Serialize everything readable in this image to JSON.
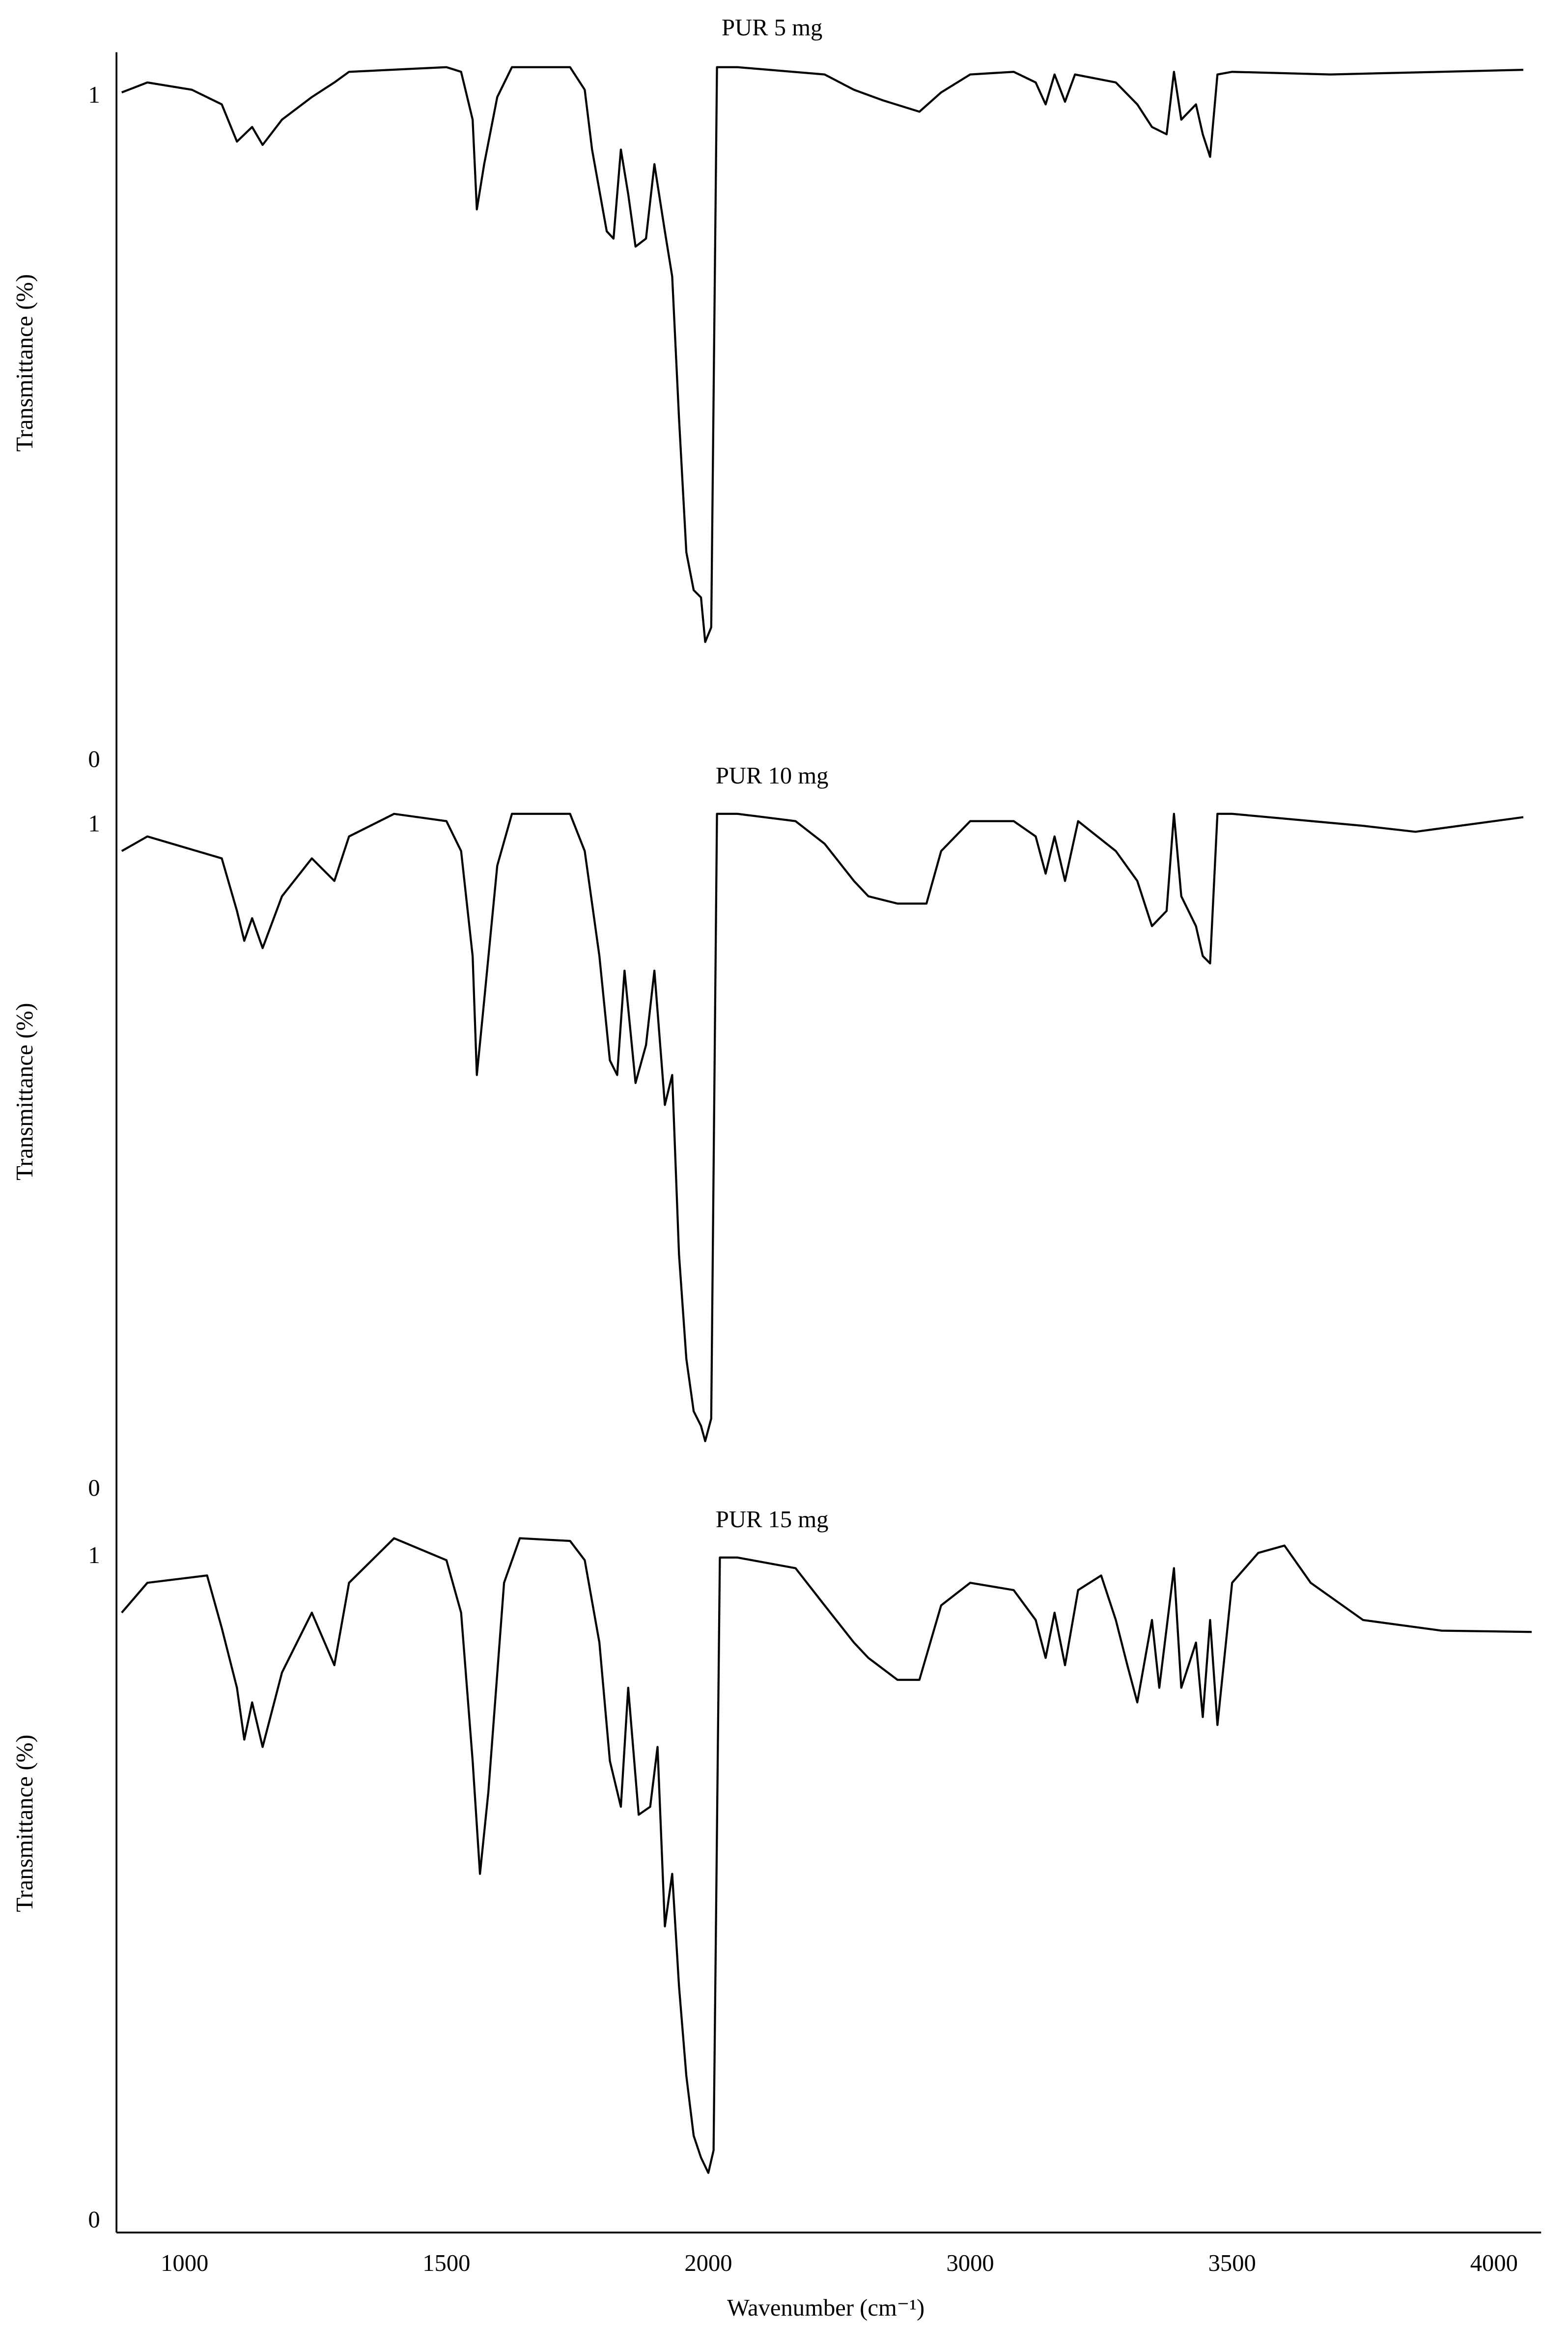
{
  "chart_data": [
    {
      "type": "line",
      "title": "PUR 5 mg",
      "ylabel": "Transmittance (%)",
      "color": "#000000",
      "ylim": [
        0,
        1.06
      ],
      "yticks": [
        0,
        1
      ],
      "x": [
        880,
        929,
        1014,
        1071,
        1100,
        1129,
        1149,
        1186,
        1243,
        1286,
        1314,
        1500,
        1528,
        1550,
        1558,
        1572,
        1597,
        1625,
        1736,
        1764,
        1778,
        1806,
        1819,
        1833,
        1847,
        1861,
        1881,
        1897,
        1917,
        1931,
        1944,
        1958,
        1972,
        1986,
        1994,
        2011,
        2033,
        2111,
        2444,
        2556,
        2667,
        2806,
        2889,
        3000,
        3083,
        3125,
        3144,
        3161,
        3181,
        3200,
        3278,
        3319,
        3347,
        3375,
        3389,
        3403,
        3431,
        3444,
        3458,
        3472,
        3500,
        3688,
        4056
      ],
      "values": [
        1.007,
        1.022,
        1.011,
        0.989,
        0.933,
        0.955,
        0.928,
        0.966,
        1.0,
        1.022,
        1.038,
        1.045,
        1.038,
        0.966,
        0.831,
        0.899,
        1.0,
        1.045,
        1.045,
        1.011,
        0.921,
        0.798,
        0.787,
        0.921,
        0.854,
        0.775,
        0.787,
        0.899,
        0.798,
        0.73,
        0.517,
        0.315,
        0.258,
        0.247,
        0.18,
        0.202,
        1.045,
        1.045,
        1.034,
        1.011,
        0.995,
        0.978,
        1.007,
        1.034,
        1.038,
        1.022,
        0.989,
        1.034,
        0.993,
        1.034,
        1.022,
        0.989,
        0.955,
        0.944,
        1.038,
        0.966,
        0.989,
        0.944,
        0.91,
        1.034,
        1.038,
        1.034,
        1.041
      ]
    },
    {
      "type": "line",
      "title": "PUR 10 mg",
      "ylabel": "Transmittance (%)",
      "color": "#000000",
      "ylim": [
        0,
        1.06
      ],
      "yticks": [
        0,
        1
      ],
      "x": [
        880,
        929,
        1071,
        1100,
        1114,
        1129,
        1149,
        1186,
        1243,
        1286,
        1314,
        1400,
        1500,
        1528,
        1550,
        1558,
        1572,
        1597,
        1625,
        1736,
        1764,
        1792,
        1812,
        1826,
        1840,
        1861,
        1881,
        1897,
        1917,
        1931,
        1944,
        1958,
        1972,
        1986,
        1994,
        2011,
        2033,
        2111,
        2333,
        2444,
        2556,
        2611,
        2722,
        2833,
        2889,
        3000,
        3083,
        3125,
        3144,
        3161,
        3181,
        3206,
        3278,
        3319,
        3347,
        3375,
        3389,
        3403,
        3431,
        3444,
        3458,
        3472,
        3500,
        3750,
        3850,
        4056
      ],
      "values": [
        0.962,
        0.984,
        0.951,
        0.872,
        0.827,
        0.861,
        0.816,
        0.894,
        0.951,
        0.917,
        0.984,
        1.018,
        1.007,
        0.962,
        0.804,
        0.625,
        0.737,
        0.94,
        1.018,
        1.018,
        0.962,
        0.804,
        0.647,
        0.625,
        0.782,
        0.613,
        0.67,
        0.782,
        0.58,
        0.625,
        0.355,
        0.198,
        0.119,
        0.097,
        0.074,
        0.108,
        1.018,
        1.018,
        1.007,
        0.973,
        0.917,
        0.894,
        0.883,
        0.883,
        0.962,
        1.007,
        1.007,
        0.984,
        0.928,
        0.984,
        0.917,
        1.007,
        0.962,
        0.917,
        0.849,
        0.872,
        1.018,
        0.894,
        0.849,
        0.804,
        0.793,
        1.018,
        1.018,
        1.0,
        0.991,
        1.013
      ]
    },
    {
      "type": "line",
      "title": "PUR 15 mg",
      "ylabel": "Transmittance (%)",
      "xlabel": "Wavenumber (cm⁻¹)",
      "color": "#000000",
      "xlim": [
        870,
        4090
      ],
      "xticks": [
        1000,
        1500,
        2000,
        3000,
        3500,
        4000
      ],
      "ylim": [
        0,
        1.06
      ],
      "yticks": [
        0,
        1
      ],
      "x": [
        880,
        929,
        1043,
        1071,
        1100,
        1114,
        1129,
        1149,
        1186,
        1243,
        1286,
        1314,
        1400,
        1500,
        1528,
        1550,
        1564,
        1580,
        1610,
        1640,
        1736,
        1764,
        1792,
        1812,
        1833,
        1847,
        1867,
        1889,
        1903,
        1917,
        1931,
        1944,
        1958,
        1972,
        1986,
        2000,
        2020,
        2044,
        2111,
        2333,
        2444,
        2556,
        2611,
        2722,
        2806,
        2889,
        3000,
        3083,
        3125,
        3144,
        3161,
        3181,
        3206,
        3250,
        3278,
        3300,
        3319,
        3347,
        3361,
        3389,
        3403,
        3431,
        3444,
        3458,
        3472,
        3500,
        3550,
        3600,
        3650,
        3750,
        3900,
        4072
      ],
      "values": [
        0.917,
        0.962,
        0.973,
        0.894,
        0.804,
        0.726,
        0.782,
        0.715,
        0.827,
        0.917,
        0.838,
        0.962,
        1.029,
        0.996,
        0.917,
        0.694,
        0.524,
        0.647,
        0.962,
        1.029,
        1.025,
        0.996,
        0.872,
        0.694,
        0.625,
        0.804,
        0.613,
        0.625,
        0.715,
        0.445,
        0.524,
        0.355,
        0.22,
        0.13,
        0.097,
        0.074,
        0.108,
        1.0,
        1.0,
        0.984,
        0.928,
        0.872,
        0.849,
        0.816,
        0.816,
        0.928,
        0.962,
        0.951,
        0.906,
        0.849,
        0.917,
        0.838,
        0.951,
        0.973,
        0.906,
        0.838,
        0.782,
        0.906,
        0.804,
        0.984,
        0.804,
        0.872,
        0.76,
        0.906,
        0.748,
        0.962,
        1.007,
        1.018,
        0.962,
        0.906,
        0.89,
        0.888
      ]
    }
  ]
}
